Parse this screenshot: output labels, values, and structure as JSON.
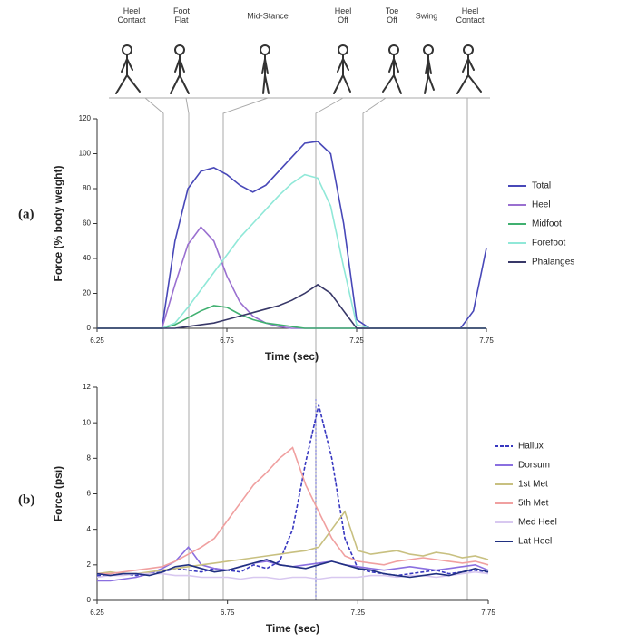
{
  "gait_phases": [
    "Heel Contact",
    "Foot Flat",
    "Mid-Stance",
    "Heel Off",
    "Toe Off",
    "Swing",
    "Heel Contact"
  ],
  "chart_data": [
    {
      "type": "line",
      "panel_label": "(a)",
      "xlabel": "Time (sec)",
      "ylabel": "Force (% body weight)",
      "xlim": [
        6.25,
        7.75
      ],
      "xticks": [
        6.25,
        6.75,
        7.25,
        7.75
      ],
      "ylim": [
        0,
        120
      ],
      "yticks": [
        0,
        20,
        40,
        60,
        80,
        100,
        120
      ],
      "x": [
        6.25,
        6.5,
        6.55,
        6.6,
        6.65,
        6.7,
        6.75,
        6.8,
        6.85,
        6.9,
        6.95,
        7.0,
        7.05,
        7.1,
        7.15,
        7.2,
        7.25,
        7.3,
        7.4,
        7.5,
        7.6,
        7.65,
        7.7,
        7.75
      ],
      "series": [
        {
          "name": "Total",
          "color": "#4848b8",
          "values": [
            0,
            0,
            50,
            80,
            90,
            92,
            88,
            82,
            78,
            82,
            90,
            98,
            106,
            107,
            100,
            60,
            5,
            0,
            0,
            0,
            0,
            0,
            10,
            46
          ]
        },
        {
          "name": "Heel",
          "color": "#9a70d0",
          "values": [
            0,
            0,
            25,
            48,
            58,
            50,
            30,
            15,
            7,
            3,
            1,
            0,
            0,
            0,
            0,
            0,
            0,
            0,
            0,
            0,
            0,
            0,
            0,
            0
          ]
        },
        {
          "name": "Midfoot",
          "color": "#40b070",
          "values": [
            0,
            0,
            2,
            6,
            10,
            13,
            12,
            8,
            5,
            3,
            2,
            1,
            0,
            0,
            0,
            0,
            0,
            0,
            0,
            0,
            0,
            0,
            0,
            0
          ]
        },
        {
          "name": "Forefoot",
          "color": "#90e8d8",
          "values": [
            0,
            0,
            3,
            12,
            22,
            32,
            42,
            52,
            60,
            68,
            76,
            83,
            88,
            86,
            70,
            35,
            2,
            0,
            0,
            0,
            0,
            0,
            0,
            0
          ]
        },
        {
          "name": "Phalanges",
          "color": "#383868",
          "values": [
            0,
            0,
            0,
            1,
            2,
            3,
            5,
            7,
            9,
            11,
            13,
            16,
            20,
            25,
            20,
            10,
            0,
            0,
            0,
            0,
            0,
            0,
            0,
            0
          ]
        }
      ]
    },
    {
      "type": "line",
      "panel_label": "(b)",
      "xlabel": "Time (sec)",
      "ylabel": "Force (psi)",
      "xlim": [
        6.25,
        7.75
      ],
      "xticks": [
        6.25,
        6.75,
        7.25,
        7.75
      ],
      "ylim": [
        0,
        12
      ],
      "yticks": [
        0,
        2,
        4,
        6,
        8,
        10,
        12
      ],
      "x": [
        6.25,
        6.3,
        6.35,
        6.4,
        6.45,
        6.5,
        6.55,
        6.6,
        6.65,
        6.7,
        6.75,
        6.8,
        6.85,
        6.9,
        6.95,
        7.0,
        7.05,
        7.1,
        7.15,
        7.2,
        7.25,
        7.3,
        7.35,
        7.4,
        7.45,
        7.5,
        7.55,
        7.6,
        7.65,
        7.7,
        7.75
      ],
      "series": [
        {
          "name": "Hallux",
          "color": "#3838c0",
          "dashed": true,
          "values": [
            1.4,
            1.4,
            1.5,
            1.4,
            1.5,
            1.6,
            1.8,
            1.7,
            1.6,
            1.8,
            1.7,
            1.6,
            2.0,
            1.8,
            2.2,
            4.0,
            7.8,
            11.0,
            8.0,
            3.5,
            1.8,
            1.6,
            1.5,
            1.4,
            1.5,
            1.6,
            1.7,
            1.5,
            1.6,
            1.7,
            1.6
          ]
        },
        {
          "name": "Dorsum",
          "color": "#8a6fe0",
          "values": [
            1.1,
            1.1,
            1.2,
            1.3,
            1.5,
            1.8,
            2.2,
            3.0,
            2.0,
            1.8,
            1.7,
            1.9,
            2.1,
            2.2,
            2.0,
            1.9,
            2.0,
            2.1,
            2.2,
            2.0,
            1.9,
            1.8,
            1.7,
            1.8,
            1.9,
            1.8,
            1.7,
            1.8,
            1.9,
            2.0,
            1.7
          ]
        },
        {
          "name": "1st Met",
          "color": "#c8c080",
          "values": [
            1.5,
            1.6,
            1.5,
            1.5,
            1.6,
            1.7,
            1.8,
            1.9,
            2.0,
            2.1,
            2.2,
            2.3,
            2.4,
            2.5,
            2.6,
            2.7,
            2.8,
            3.0,
            4.0,
            5.0,
            2.8,
            2.6,
            2.7,
            2.8,
            2.6,
            2.5,
            2.7,
            2.6,
            2.4,
            2.5,
            2.3
          ]
        },
        {
          "name": "5th Met",
          "color": "#f0a0a0",
          "values": [
            1.5,
            1.5,
            1.6,
            1.7,
            1.8,
            1.9,
            2.2,
            2.6,
            3.0,
            3.5,
            4.5,
            5.5,
            6.5,
            7.2,
            8.0,
            8.6,
            6.5,
            5.0,
            3.5,
            2.5,
            2.2,
            2.1,
            2.0,
            2.2,
            2.3,
            2.4,
            2.3,
            2.2,
            2.1,
            2.2,
            2.0
          ]
        },
        {
          "name": "Med Heel",
          "color": "#d8c8f0",
          "values": [
            1.3,
            1.4,
            1.4,
            1.5,
            1.5,
            1.5,
            1.4,
            1.4,
            1.3,
            1.3,
            1.3,
            1.2,
            1.3,
            1.3,
            1.2,
            1.3,
            1.3,
            1.2,
            1.3,
            1.3,
            1.3,
            1.4,
            1.4,
            1.3,
            1.4,
            1.4,
            1.3,
            1.4,
            1.5,
            1.6,
            1.5
          ]
        },
        {
          "name": "Lat Heel",
          "color": "#203080",
          "values": [
            1.5,
            1.4,
            1.5,
            1.5,
            1.4,
            1.6,
            1.9,
            2.0,
            1.8,
            1.6,
            1.7,
            1.9,
            2.1,
            2.3,
            2.0,
            1.9,
            1.8,
            2.0,
            2.2,
            2.0,
            1.8,
            1.7,
            1.5,
            1.4,
            1.3,
            1.4,
            1.5,
            1.4,
            1.6,
            1.8,
            1.6
          ]
        }
      ]
    }
  ]
}
